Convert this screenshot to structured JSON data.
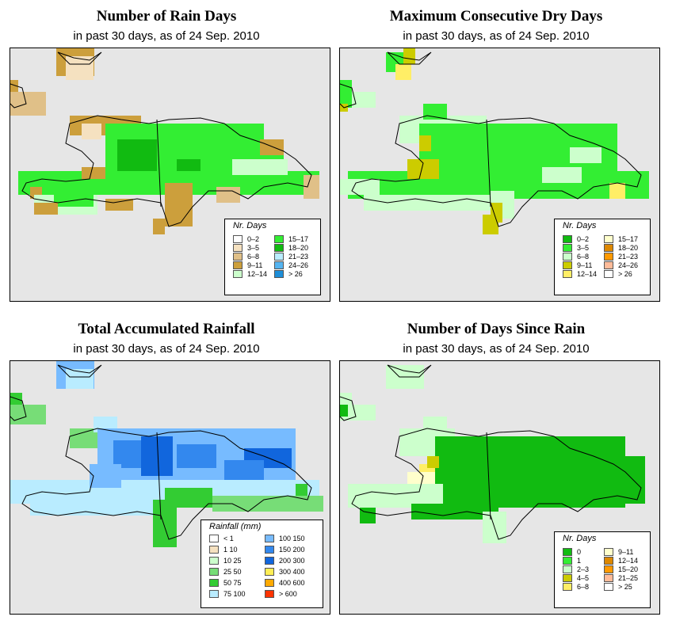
{
  "panels": [
    {
      "id": "rain-days",
      "title": "Number of Rain Days",
      "subtitle": "in past 30 days, as of  24 Sep. 2010",
      "legend_title": "Nr. Days",
      "legend_items": [
        {
          "label": "0–2",
          "color": "#ffffff"
        },
        {
          "label": "3–5",
          "color": "#f5e1c0"
        },
        {
          "label": "6–8",
          "color": "#e0c088"
        },
        {
          "label": "9–11",
          "color": "#cc9f3c"
        },
        {
          "label": "12–14",
          "color": "#ccffcc"
        },
        {
          "label": "15–17",
          "color": "#33ee33"
        },
        {
          "label": "18–20",
          "color": "#11bb11"
        },
        {
          "label": "21–23",
          "color": "#b9ecff"
        },
        {
          "label": "24–26",
          "color": "#55b4f0"
        },
        {
          "label": "> 26",
          "color": "#1e8ed8"
        }
      ]
    },
    {
      "id": "dry-days",
      "title": "Maximum Consecutive Dry Days",
      "subtitle": "in past 30 days, as of  24 Sep. 2010",
      "legend_title": "Nr. Days",
      "legend_items": [
        {
          "label": "0–2",
          "color": "#11bb11"
        },
        {
          "label": "3–5",
          "color": "#33ee33"
        },
        {
          "label": "6–8",
          "color": "#ccffcc"
        },
        {
          "label": "9–11",
          "color": "#cccc00"
        },
        {
          "label": "12–14",
          "color": "#ffee66"
        },
        {
          "label": "15–17",
          "color": "#ffffcc"
        },
        {
          "label": "18–20",
          "color": "#dd8800"
        },
        {
          "label": "21–23",
          "color": "#ff9900"
        },
        {
          "label": "24–26",
          "color": "#ffbb99"
        },
        {
          "label": "> 26",
          "color": "#ffffff"
        }
      ]
    },
    {
      "id": "rainfall",
      "title": "Total Accumulated Rainfall",
      "subtitle": "in past 30 days, as of  24 Sep. 2010",
      "legend_title": "Rainfall (mm)",
      "legend_items": [
        {
          "label": "< 1",
          "color": "#ffffff"
        },
        {
          "label": "1   10",
          "color": "#f5e1c0"
        },
        {
          "label": "10   25",
          "color": "#ccffcc"
        },
        {
          "label": "25   50",
          "color": "#77dd77"
        },
        {
          "label": "50   75",
          "color": "#33cc33"
        },
        {
          "label": "75   100",
          "color": "#b9ecff"
        },
        {
          "label": "100   150",
          "color": "#77bbff"
        },
        {
          "label": "150   200",
          "color": "#3388ee"
        },
        {
          "label": "200   300",
          "color": "#1166dd"
        },
        {
          "label": "300   400",
          "color": "#ffee55"
        },
        {
          "label": "400   600",
          "color": "#ffaa00"
        },
        {
          "label": "> 600",
          "color": "#ff3300"
        }
      ]
    },
    {
      "id": "since-rain",
      "title": "Number of Days Since Rain",
      "subtitle": "in past 30 days, as of  24 Sep. 2010",
      "legend_title": "Nr. Days",
      "legend_items": [
        {
          "label": "0",
          "color": "#11bb11"
        },
        {
          "label": "1",
          "color": "#33ee33"
        },
        {
          "label": "2–3",
          "color": "#ccffcc"
        },
        {
          "label": "4–5",
          "color": "#cccc00"
        },
        {
          "label": "6–8",
          "color": "#ffee66"
        },
        {
          "label": "9–11",
          "color": "#ffffcc"
        },
        {
          "label": "12–14",
          "color": "#dd8800"
        },
        {
          "label": "15–20",
          "color": "#ff9900"
        },
        {
          "label": "21–25",
          "color": "#ffbb99"
        },
        {
          "label": "> 25",
          "color": "#ffffff"
        }
      ]
    }
  ]
}
